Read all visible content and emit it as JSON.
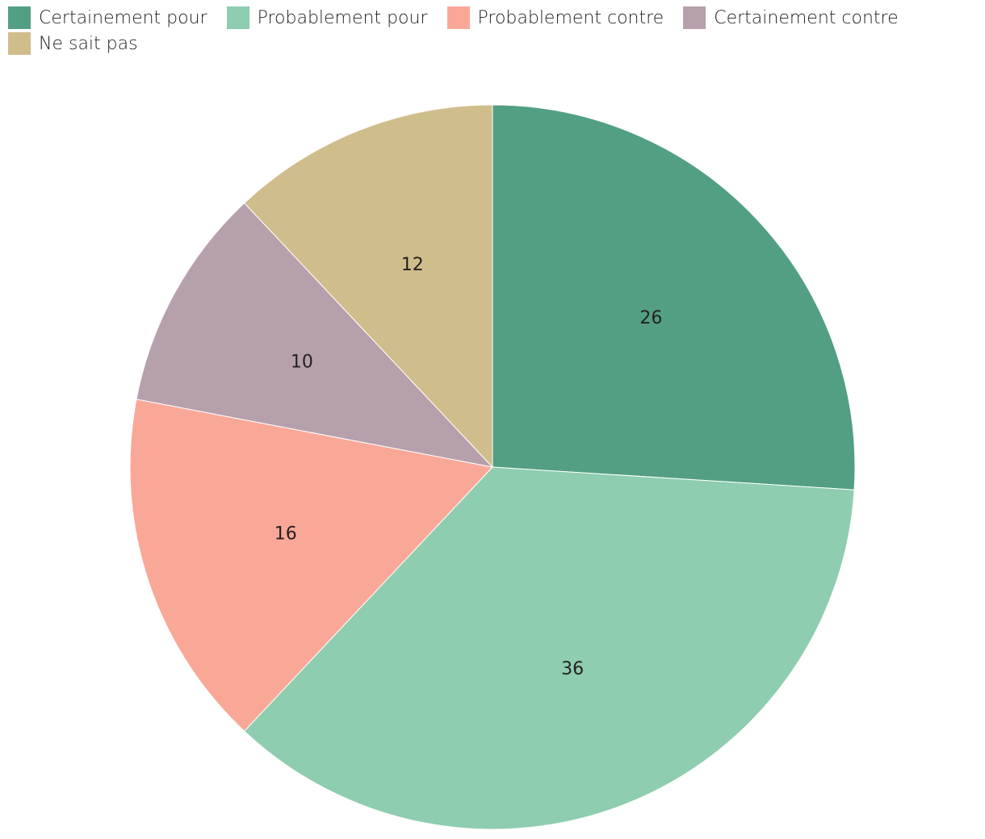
{
  "chart_data": {
    "type": "pie",
    "categories": [
      "Certainement pour",
      "Probablement pour",
      "Probablement contre",
      "Certainement contre",
      "Ne sait pas"
    ],
    "values": [
      26,
      36,
      16,
      10,
      12
    ],
    "colors": [
      "#539f83",
      "#8ecdaf",
      "#f9a898",
      "#b6a0ac",
      "#d0bd8c"
    ],
    "legend_position": "top-left",
    "start": "12 o'clock",
    "direction": "clockwise"
  }
}
